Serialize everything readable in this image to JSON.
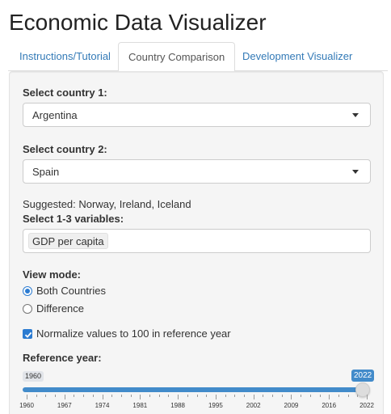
{
  "app": {
    "title": "Economic Data Visualizer"
  },
  "tabs": [
    {
      "label": "Instructions/Tutorial",
      "active": false
    },
    {
      "label": "Country Comparison",
      "active": true
    },
    {
      "label": "Development Visualizer",
      "active": false
    }
  ],
  "form": {
    "country1": {
      "label": "Select country 1:",
      "value": "Argentina"
    },
    "country2": {
      "label": "Select country 2:",
      "value": "Spain"
    },
    "suggested": "Suggested: Norway, Ireland, Iceland",
    "variables": {
      "label": "Select 1-3 variables:",
      "selected": [
        "GDP per capita"
      ]
    },
    "view_mode": {
      "label": "View mode:",
      "options": [
        {
          "label": "Both Countries",
          "selected": true
        },
        {
          "label": "Difference",
          "selected": false
        }
      ]
    },
    "normalize": {
      "label": "Normalize values to 100 in reference year",
      "checked": true
    },
    "reference_year": {
      "label": "Reference year:",
      "min": 1960,
      "max": 2022,
      "value": 2022,
      "min_label": "1960",
      "value_label": "2022",
      "tick_labels": [
        "1960",
        "1967",
        "1974",
        "1981",
        "1988",
        "1995",
        "2002",
        "2009",
        "2016",
        "2022"
      ]
    }
  },
  "colors": {
    "accent": "#428bca",
    "link": "#337ab7",
    "panel": "#f5f5f5"
  }
}
